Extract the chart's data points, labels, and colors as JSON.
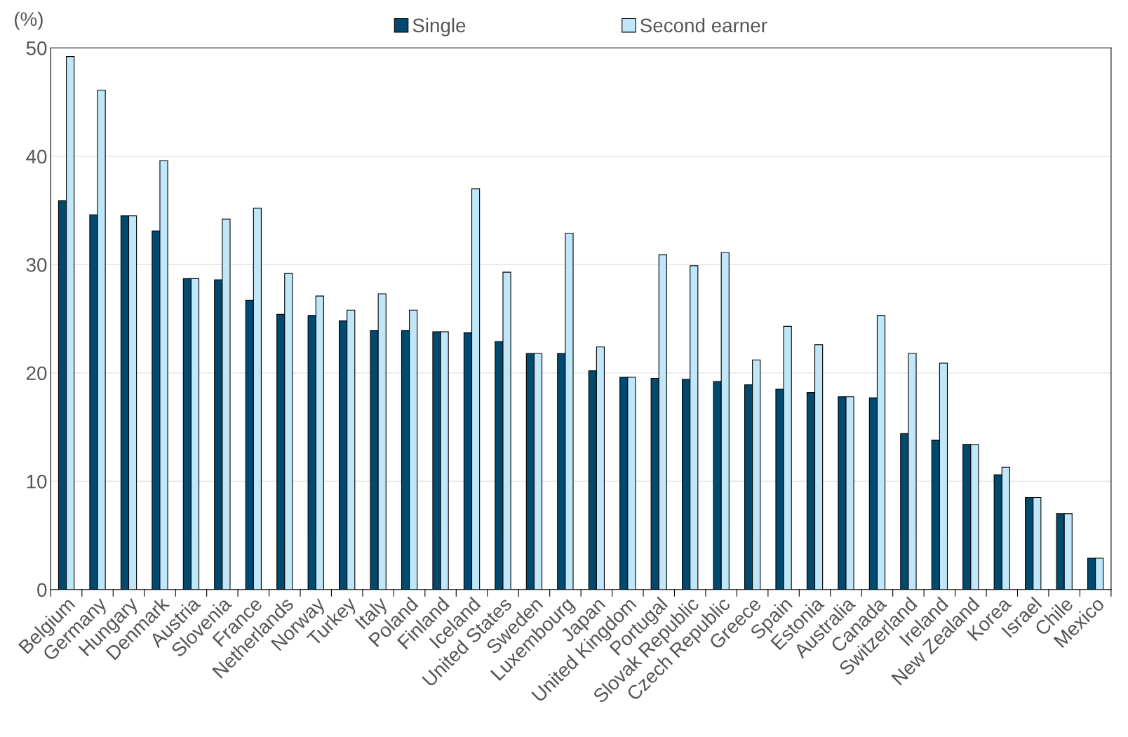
{
  "chart_data": {
    "type": "bar",
    "ylabel": "(%)",
    "categories": [
      "Belgium",
      "Germany",
      "Hungary",
      "Denmark",
      "Austria",
      "Slovenia",
      "France",
      "Netherlands",
      "Norway",
      "Turkey",
      "Italy",
      "Poland",
      "Finland",
      "Iceland",
      "United States",
      "Sweden",
      "Luxembourg",
      "Japan",
      "United Kingdom",
      "Portugal",
      "Slovak Republic",
      "Czech Republic",
      "Greece",
      "Spain",
      "Estonia",
      "Australia",
      "Canada",
      "Switzerland",
      "Ireland",
      "New Zealand",
      "Korea",
      "Israel",
      "Chile",
      "Mexico"
    ],
    "series": [
      {
        "name": "Single",
        "color": "#004a70",
        "values": [
          35.9,
          34.6,
          34.5,
          33.1,
          28.7,
          28.6,
          26.7,
          25.4,
          25.3,
          24.8,
          23.9,
          23.9,
          23.8,
          23.7,
          22.9,
          21.8,
          21.8,
          20.2,
          19.6,
          19.5,
          19.4,
          19.2,
          18.9,
          18.5,
          18.2,
          17.8,
          17.7,
          14.4,
          13.8,
          13.4,
          10.6,
          8.5,
          7.0,
          2.9
        ]
      },
      {
        "name": "Second earner",
        "color": "#bfe7f9",
        "values": [
          49.2,
          46.1,
          34.5,
          39.6,
          28.7,
          34.2,
          35.2,
          29.2,
          27.1,
          25.8,
          27.3,
          25.8,
          23.8,
          37.0,
          29.3,
          21.8,
          32.9,
          22.4,
          19.6,
          30.9,
          29.9,
          31.1,
          21.2,
          24.3,
          22.6,
          17.8,
          25.3,
          21.8,
          20.9,
          13.4,
          11.3,
          8.5,
          7.0,
          2.9
        ]
      }
    ],
    "ylim": [
      0,
      50
    ],
    "yticks": [
      0,
      10,
      20,
      30,
      40,
      50
    ],
    "grid": "y",
    "legend": "top"
  }
}
